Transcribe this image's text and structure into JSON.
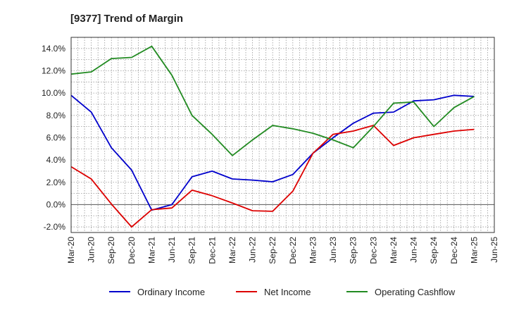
{
  "chart_data": {
    "type": "line",
    "title": "[9377]  Trend of Margin",
    "x": [
      "Mar-20",
      "Jun-20",
      "Sep-20",
      "Dec-20",
      "Mar-21",
      "Jun-21",
      "Sep-21",
      "Dec-21",
      "Mar-22",
      "Jun-22",
      "Sep-22",
      "Dec-22",
      "Mar-23",
      "Jun-23",
      "Sep-23",
      "Dec-23",
      "Mar-24",
      "Jun-24",
      "Sep-24",
      "Dec-24",
      "Mar-25",
      "Jun-25"
    ],
    "yticks": [
      "-2.0%",
      "0.0%",
      "2.0%",
      "4.0%",
      "6.0%",
      "8.0%",
      "10.0%",
      "12.0%",
      "14.0%"
    ],
    "ylim": [
      -2.5,
      15.0
    ],
    "grid": true,
    "legend_position": "bottom",
    "series": [
      {
        "name": "Ordinary Income",
        "color": "#0000cc",
        "values": [
          9.8,
          8.3,
          5.1,
          3.1,
          -0.5,
          0.0,
          2.5,
          3.0,
          2.3,
          2.2,
          2.05,
          2.7,
          4.6,
          6.0,
          7.3,
          8.2,
          8.3,
          9.3,
          9.4,
          9.8,
          9.7,
          null
        ]
      },
      {
        "name": "Net Income",
        "color": "#dd0000",
        "values": [
          3.4,
          2.3,
          0.05,
          -2.0,
          -0.45,
          -0.3,
          1.3,
          0.8,
          0.15,
          -0.55,
          -0.6,
          1.2,
          4.6,
          6.3,
          6.6,
          7.1,
          5.3,
          6.0,
          6.3,
          6.6,
          6.75,
          null
        ]
      },
      {
        "name": "Operating Cashflow",
        "color": "#228b22",
        "values": [
          11.7,
          11.9,
          13.1,
          13.2,
          14.2,
          11.6,
          8.0,
          6.3,
          4.4,
          5.8,
          7.1,
          6.8,
          6.4,
          5.8,
          5.1,
          7.0,
          9.1,
          9.2,
          7.0,
          8.7,
          9.7,
          null
        ]
      }
    ]
  }
}
